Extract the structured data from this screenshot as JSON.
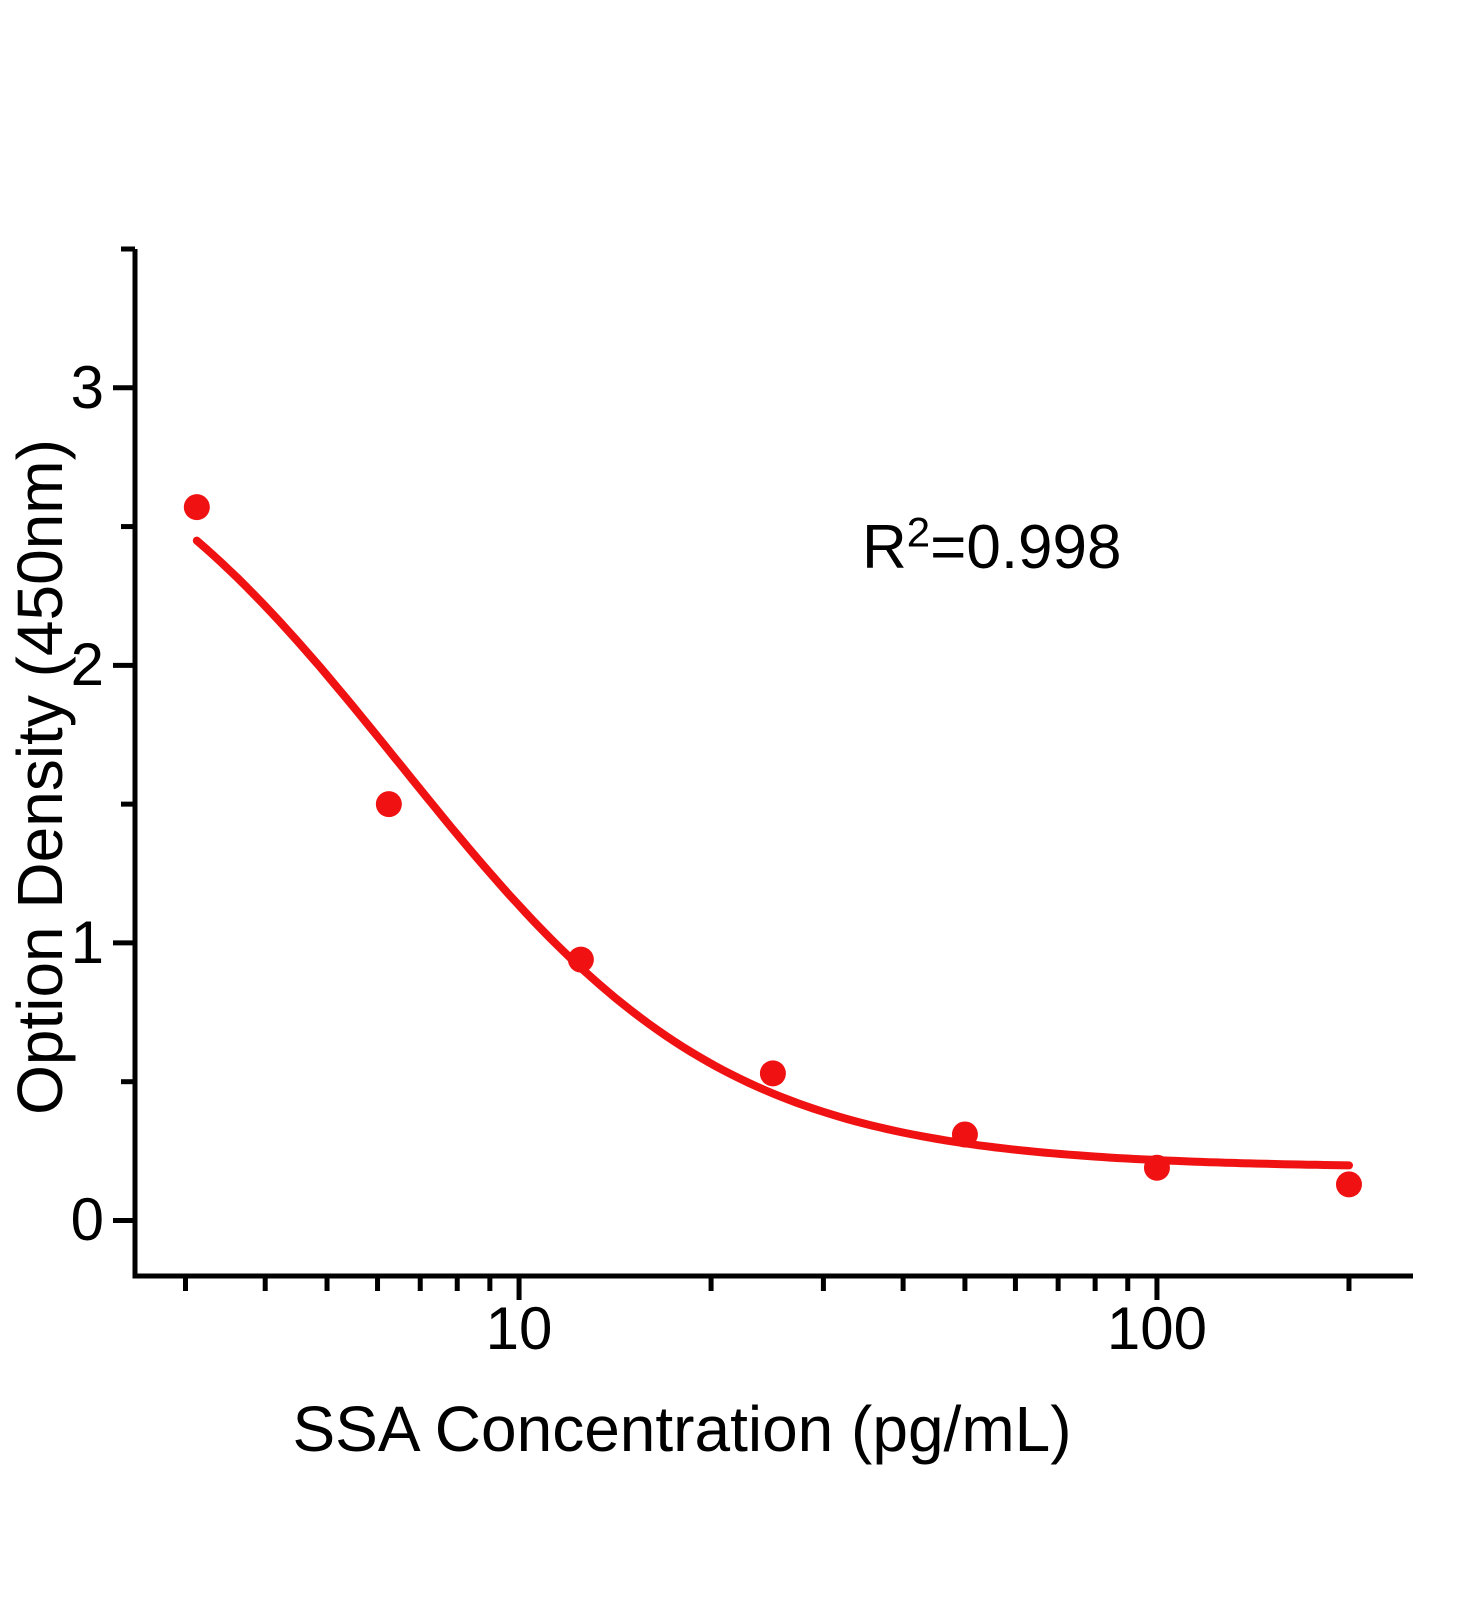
{
  "figure": {
    "background": "#ffffff",
    "annotation": {
      "base": "R",
      "sup": "2",
      "rest": "=0.998"
    }
  },
  "chart_data": {
    "type": "scatter",
    "title": "",
    "xlabel": "SSA Concentration  (pg/mL)",
    "ylabel": "Option Density  (450nm)",
    "x_scale": "log",
    "y_scale": "linear",
    "x": [
      3.125,
      6.25,
      12.5,
      25,
      50,
      100,
      200
    ],
    "y": [
      2.57,
      1.5,
      0.94,
      0.53,
      0.31,
      0.19,
      0.13
    ],
    "r_squared_label": "R²=0.998",
    "xlim": [
      2.5,
      252
    ],
    "ylim": [
      -0.2,
      3.5
    ],
    "x_major_ticks": [
      10,
      100
    ],
    "x_major_tick_labels": [
      "10",
      "100"
    ],
    "x_minor_ticks": [
      3,
      4,
      5,
      6,
      7,
      8,
      9,
      20,
      30,
      40,
      50,
      60,
      70,
      80,
      90,
      200
    ],
    "y_major_ticks": [
      0,
      1,
      2,
      3
    ],
    "y_major_tick_labels": [
      "0",
      "1",
      "2",
      "3"
    ],
    "y_minor_ticks": [
      0.5,
      1.5,
      2.5,
      3.5
    ],
    "fit_curve": {
      "model": "4PL",
      "a": 3.1,
      "b": 1.7,
      "c": 6.5,
      "d": 0.19,
      "x_start": 3.125,
      "x_end": 200
    },
    "grid": false,
    "legend": false,
    "point_color": "#F01212",
    "line_color": "#F01212",
    "axis_color": "#000000"
  }
}
